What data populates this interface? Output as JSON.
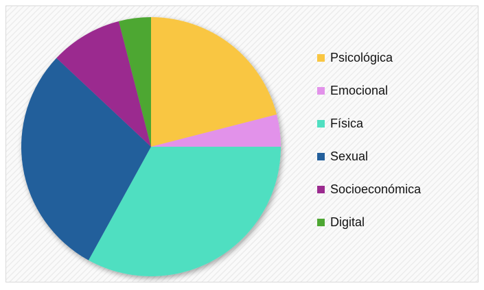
{
  "chart_data": {
    "type": "pie",
    "categories": [
      "Psicológica",
      "Emocional",
      "Física",
      "Sexual",
      "Socioeconómica",
      "Digital"
    ],
    "values": [
      21,
      4,
      33,
      29,
      9,
      4
    ],
    "colors": [
      "#f9c642",
      "#e292ea",
      "#50dfc1",
      "#235f9b",
      "#9b2b8f",
      "#4ea733"
    ],
    "legend": "right"
  }
}
